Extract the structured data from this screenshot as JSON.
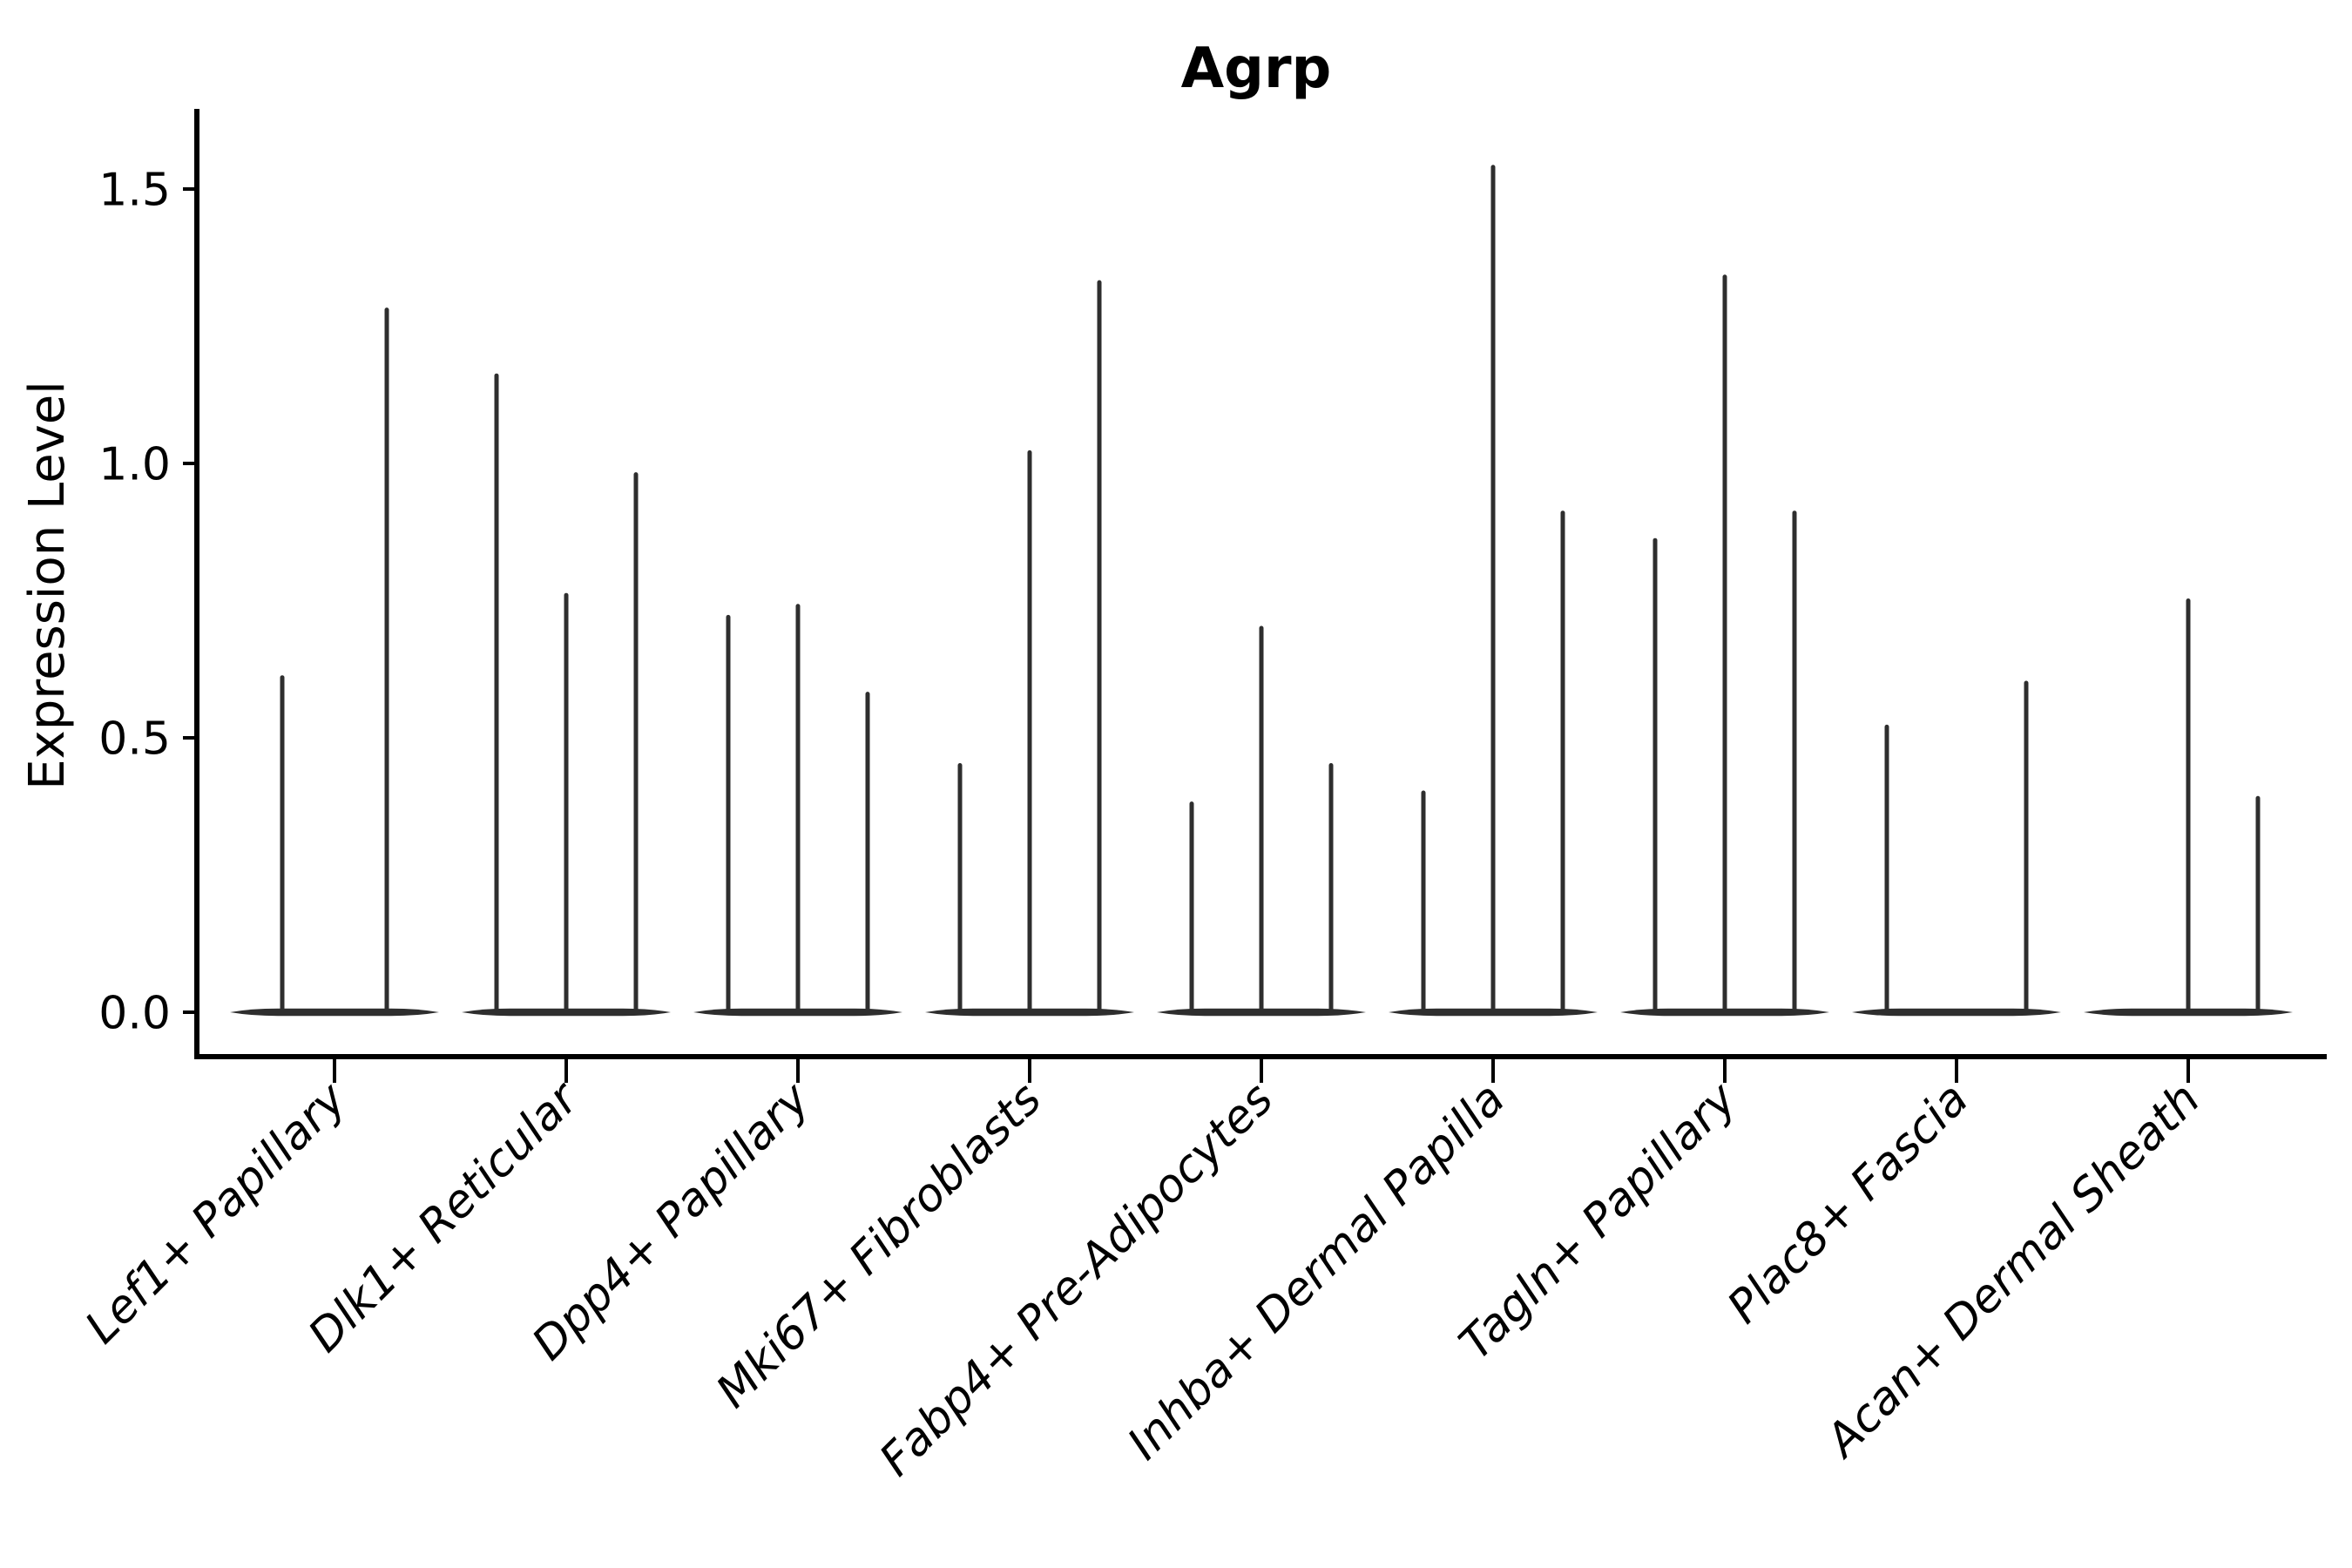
{
  "title": "Agrp",
  "chart_data": {
    "type": "violin",
    "title": "Agrp",
    "xlabel": "",
    "ylabel": "Expression Level",
    "ylim": [
      -0.08,
      1.64
    ],
    "yticks": [
      0.0,
      0.5,
      1.0,
      1.5
    ],
    "ytick_labels": [
      "0.0",
      "0.5",
      "1.0",
      "1.5"
    ],
    "grid": false,
    "legend": "none",
    "categories": [
      "Lef1+ Papillary",
      "Dlk1+ Reticular",
      "Dpp4+ Papillary",
      "Mki67+ Fibroblasts",
      "Fabp4+ Pre-Adipocytes",
      "Inhba+ Dermal Papilla",
      "Tagln+ Papillary",
      "Plac8+ Fascia",
      "Acan+ Dermal Sheath"
    ],
    "violin_description": "Each category holds thin split violins; values are the max expression (spike top). 0 means a flat violin with no expressing cells (baseline only).",
    "violins": [
      [
        0.61,
        1.28
      ],
      [
        1.16,
        0.76,
        0.98
      ],
      [
        0.72,
        0.74,
        0.58
      ],
      [
        0.45,
        1.02,
        1.33
      ],
      [
        0.38,
        0.7,
        0.45
      ],
      [
        0.4,
        1.54,
        0.91
      ],
      [
        0.86,
        1.34,
        0.91
      ],
      [
        0.52,
        0,
        0.6
      ],
      [
        0,
        0.75,
        0.39
      ]
    ]
  },
  "style": {
    "violin_color": "#2e2e2e",
    "axis_color": "#000000",
    "text_color": "#000000",
    "background": "#ffffff"
  }
}
